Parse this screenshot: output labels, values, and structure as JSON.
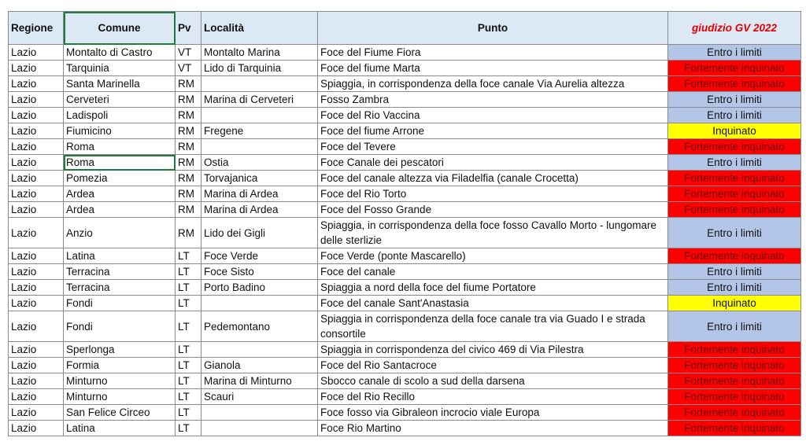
{
  "table": {
    "header": [
      "Regione",
      "Comune",
      "Pv",
      "Località",
      "Punto",
      "giudizio GV 2022"
    ],
    "rows": [
      {
        "cells": [
          "Lazio",
          "Montalto di Castro",
          "VT",
          "Montalto Marina",
          "Foce del Fiume Fiora",
          "Entro i limiti"
        ],
        "color": "#b4c6e7"
      },
      {
        "cells": [
          "Lazio",
          "Tarquinia",
          "VT",
          "Lido di Tarquinia",
          "Foce del fiume Marta",
          "Fortemente inquinato"
        ],
        "color": "#ff0000"
      },
      {
        "cells": [
          "Lazio",
          "Santa Marinella",
          "RM",
          null,
          "Spiaggia, in corrispondenza della foce canale Via Aurelia altezza",
          "Fortemente inquinato"
        ],
        "color": "#ff0000"
      },
      {
        "cells": [
          "Lazio",
          "Cerveteri",
          "RM",
          "Marina di Cerveteri",
          "Fosso Zambra",
          "Entro i limiti"
        ],
        "color": "#b4c6e7"
      },
      {
        "cells": [
          "Lazio",
          "Ladispoli",
          "RM",
          null,
          "Foce del Rio Vaccina",
          "Entro i limiti"
        ],
        "color": "#b4c6e7"
      },
      {
        "cells": [
          "Lazio",
          "Fiumicino",
          "RM",
          "Fregene",
          "Foce del fiume Arrone",
          "Inquinato"
        ],
        "color": "#ffff00"
      },
      {
        "cells": [
          "Lazio",
          "Roma",
          "RM",
          null,
          "Foce del Tevere",
          "Fortemente inquinato"
        ],
        "color": "#ff0000"
      },
      {
        "cells": [
          "Lazio",
          "Roma",
          "RM",
          "Ostia",
          "Foce Canale dei pescatori",
          "Entro i limiti"
        ],
        "color": "#b4c6e7"
      },
      {
        "cells": [
          "Lazio",
          "Pomezia",
          "RM",
          "Torvajanica",
          "Foce del canale altezza via Filadelfia (canale Crocetta)",
          "Fortemente inquinato"
        ],
        "color": "#ff0000"
      },
      {
        "cells": [
          "Lazio",
          "Ardea",
          "RM",
          "Marina di Ardea",
          "Foce del Rio Torto",
          "Fortemente inquinato"
        ],
        "color": "#ff0000"
      },
      {
        "cells": [
          "Lazio",
          "Ardea",
          "RM",
          "Marina di Ardea",
          "Foce del Fosso Grande",
          "Fortemente inquinato"
        ],
        "color": "#ff0000"
      },
      {
        "cells": [
          "Lazio",
          "Anzio",
          "RM",
          "Lido dei Gigli",
          "Spiaggia, in corrispondenza della foce fosso Cavallo Morto - lungomare delle sterlizie",
          "Entro i limiti"
        ],
        "color": "#b4c6e7"
      },
      {
        "cells": [
          "Lazio",
          "Latina",
          "LT",
          "Foce Verde",
          "Foce Verde (ponte Mascarello)",
          "Fortemente inquinato"
        ],
        "color": "#ff0000"
      },
      {
        "cells": [
          "Lazio",
          "Terracina",
          "LT",
          "Foce Sisto",
          "Foce del canale",
          "Entro i limiti"
        ],
        "color": "#b4c6e7"
      },
      {
        "cells": [
          "Lazio",
          "Terracina",
          "LT",
          "Porto Badino",
          "Spiaggia a nord della foce del fiume Portatore",
          "Entro i limiti"
        ],
        "color": "#b4c6e7"
      },
      {
        "cells": [
          "Lazio",
          "Fondi",
          "LT",
          null,
          "Foce del canale Sant'Anastasia",
          "Inquinato"
        ],
        "color": "#ffff00"
      },
      {
        "cells": [
          "Lazio",
          "Fondi",
          "LT",
          "Pedemontano",
          "Spiaggia in corrispondenza della foce canale tra via Guado I e strada consortile",
          "Entro i limiti"
        ],
        "color": "#b4c6e7"
      },
      {
        "cells": [
          "Lazio",
          "Sperlonga",
          "LT",
          null,
          "Spiaggia in corrispondenza del civico 469 di Via Pilestra",
          "Fortemente inquinato"
        ],
        "color": "#ff0000"
      },
      {
        "cells": [
          "Lazio",
          "Formia",
          "LT",
          "Gianola",
          "Foce del Rio Santacroce",
          "Fortemente inquinato"
        ],
        "color": "#ff0000"
      },
      {
        "cells": [
          "Lazio",
          "Minturno",
          "LT",
          "Marina di Minturno",
          "Sbocco canale di scolo a sud della darsena",
          "Fortemente inquinato"
        ],
        "color": "#ff0000"
      },
      {
        "cells": [
          "Lazio",
          "Minturno",
          "LT",
          "Scauri",
          "Foce del Rio Recillo",
          "Fortemente inquinato"
        ],
        "color": "#ff0000"
      },
      {
        "cells": [
          "Lazio",
          "San Felice Circeo",
          "LT",
          null,
          "Foce fosso via Gibraleon incrocio viale Europa",
          "Fortemente inquinato"
        ],
        "color": "#ff0000"
      },
      {
        "cells": [
          "Lazio",
          "Latina",
          "LT",
          null,
          "Foce Rio Martino",
          "Fortemente inquinato"
        ],
        "color": "#ff0000"
      }
    ]
  }
}
